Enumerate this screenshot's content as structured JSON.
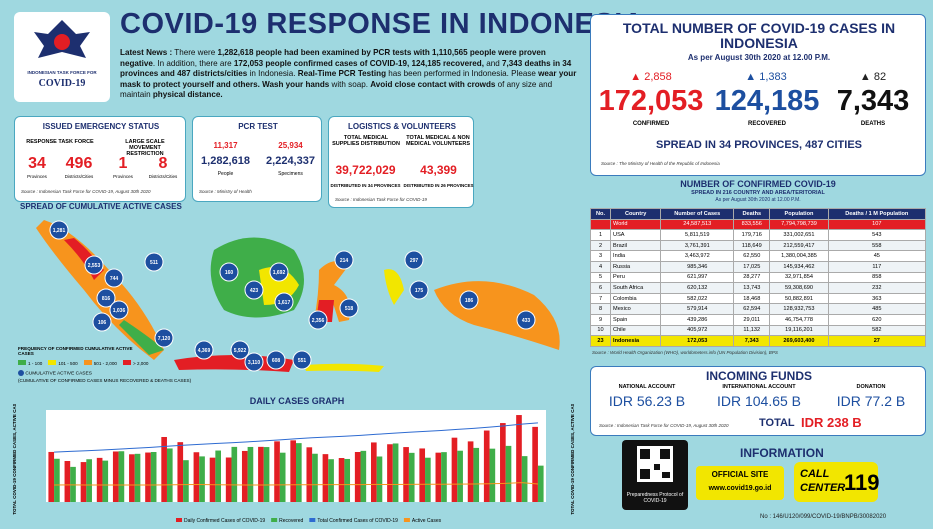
{
  "header": {
    "title": "COVID-19 RESPONSE IN INDONESIA",
    "logo_top": "INDONESIAN TASK FORCE FOR",
    "logo_bottom": "COVID-19"
  },
  "news": [
    {
      "text": "Latest News :",
      "bold": true
    },
    {
      "text": " There were ",
      "bold": false
    },
    {
      "text": "1,282,618 people had been examined by PCR tests with 1,110,565 people were proven negative",
      "bold": true
    },
    {
      "text": ". In addition, there are ",
      "bold": false
    },
    {
      "text": "172,053 people confirmed cases of COVID-19, 124,185 recovered,",
      "bold": true
    },
    {
      "text": " and ",
      "bold": false
    },
    {
      "text": "7,343 deaths in 34 provinces and 487 districts/cities",
      "bold": true
    },
    {
      "text": " in Indonesia. ",
      "bold": false
    },
    {
      "text": "Real-Time PCR Testing",
      "bold": true
    },
    {
      "text": " has been performed in Indonesia. Please ",
      "bold": false
    },
    {
      "text": "wear your mask to protect yourself and others. Wash your hands",
      "bold": true
    },
    {
      "text": " with soap. ",
      "bold": false
    },
    {
      "text": "Avoid close contact with crowds",
      "bold": true
    },
    {
      "text": " of any size and maintain ",
      "bold": false
    },
    {
      "text": "physical distance.",
      "bold": true
    }
  ],
  "emergency": {
    "title": "ISSUED EMERGENCY STATUS",
    "group1": "RESPONSE TASK FORCE",
    "group2": "LARGE SCALE MOVEMENT RESTRICTION",
    "v1": "34",
    "l1": "Provinces",
    "v2": "496",
    "l2": "Districts/Cities",
    "v3": "1",
    "l3": "Provinces",
    "v4": "8",
    "l4": "Districts/Cities",
    "source": "Source : Indonesian Task Force for COVID-19, August 30th 2020"
  },
  "pcr": {
    "title": "PCR TEST",
    "inc1": "11,317",
    "v1": "1,282,618",
    "l1": "People",
    "inc2": "25,934",
    "v2": "2,224,337",
    "l2": "Specimens",
    "source": "Source : Ministry of Health"
  },
  "logistics": {
    "title": "LOGISTICS & VOLUNTEERS",
    "h1": "TOTAL MEDICAL SUPPLIES DISTRIBUTION",
    "v1": "39,722,029",
    "d1": "DISTRIBUTED IN 34 PROVINCES",
    "h2": "TOTAL MEDICAL & NON MEDICAL VOLUNTEERS",
    "v2": "43,399",
    "d2": "DISTRIBUTED IN 26 PROVINCES",
    "source": "Source : Indonesian Task Force for COVID-19"
  },
  "map": {
    "title": "SPREAD OF CUMULATIVE ACTIVE CASES",
    "labels": [
      "1,281",
      "2,553",
      "744",
      "816",
      "511",
      "1,036",
      "106",
      "7,120",
      "4,369",
      "5,922",
      "3,110",
      "608",
      "551",
      "160",
      "423",
      "1,692",
      "1,617",
      "2,356",
      "518",
      "214",
      "175",
      "297",
      "433",
      "186"
    ],
    "legend_title": "FREQUENCY OF CONFIRMED CUMULATIVE ACTIVE CASES",
    "legend": [
      {
        "label": "1 - 100",
        "color": "#3fae49"
      },
      {
        "label": "101 - 500",
        "color": "#f2e600"
      },
      {
        "label": "501 - 2,000",
        "color": "#f7941d"
      },
      {
        "label": "> 2,000",
        "color": "#e31e24"
      }
    ],
    "badge_title": "CUMULATIVE ACTIVE CASES",
    "badge_note": "(CUMULATIVE OF CONFIRMED CASES MINUS RECOVERED & DEATHS CASES)"
  },
  "daily": {
    "title": "DAILY CASES GRAPH",
    "ylabel": "TOTAL COVID-19 CONFIRMED CASES, ACTIVE CASES",
    "y2label": "TOTAL COVID-19 CONFIRMED CASES, ACTIVE CASES",
    "ylim": [
      0,
      3500
    ],
    "y2lim": [
      0,
      200000
    ],
    "categories": [
      null,
      null,
      null,
      null,
      null,
      null,
      null,
      null,
      null,
      null,
      null,
      null,
      null,
      null,
      null,
      null,
      null,
      null,
      null,
      null,
      null,
      null,
      null,
      null,
      null,
      null,
      null,
      null,
      null,
      null,
      null
    ],
    "series": [
      {
        "name": "Daily Confirmed Cases of COVID-19",
        "color": "#e31e24",
        "values": [
          1904,
          1560,
          1519,
          1679,
          1922,
          1815,
          1882,
          2473,
          2277,
          1893,
          1687,
          1693,
          1942,
          2098,
          2307,
          2345,
          2081,
          1821,
          1673,
          1902,
          2266,
          2197,
          2090,
          2037,
          1877,
          2447,
          2306,
          2719,
          3003,
          3308,
          2858
        ]
      },
      {
        "name": "Recovered",
        "color": "#3fae49",
        "values": [
          1645,
          1336,
          1627,
          1574,
          1931,
          1833,
          1902,
          2037,
          1591,
          1735,
          1958,
          2097,
          2094,
          2090,
          1876,
          2240,
          1836,
          1628,
          1637,
          1946,
          1731,
          2227,
          1870,
          1685,
          1897,
          1951,
          2058,
          2029,
          2135,
          1745,
          1383
        ]
      },
      {
        "name": "Total Confirmed Cases of COVID-19",
        "color": "#2e6bd1",
        "axis": "y2",
        "values": [
          108376,
          109936,
          111455,
          113134,
          115056,
          116871,
          118753,
          121226,
          123503,
          125396,
          127083,
          128776,
          130718,
          132816,
          135123,
          137468,
          139549,
          141370,
          143043,
          144945,
          147211,
          149408,
          151498,
          153535,
          155412,
          157859,
          160165,
          162884,
          165887,
          169195,
          172053
        ]
      },
      {
        "name": "Active Cases",
        "color": "#f7941d",
        "axis": "y2",
        "values": [
          37000,
          37100,
          37000,
          37060,
          37000,
          36940,
          36870,
          37250,
          37850,
          37950,
          37630,
          37180,
          36980,
          36950,
          37330,
          37390,
          37600,
          37780,
          37780,
          37700,
          38200,
          38120,
          38300,
          38600,
          38500,
          38950,
          39150,
          39800,
          40600,
          42070,
          39200
        ]
      }
    ]
  },
  "total": {
    "title": "TOTAL NUMBER OF COVID-19 CASES IN INDONESIA",
    "subtitle": "As per August 30th 2020 at 12.00 P.M.",
    "confirmed_inc": "2,858",
    "confirmed": "172,053",
    "confirmed_label": "CONFIRMED",
    "recovered_inc": "1,383",
    "recovered": "124,185",
    "recovered_label": "RECOVERED",
    "deaths_inc": "82",
    "deaths": "7,343",
    "deaths_label": "DEATHS",
    "spread": "SPREAD IN 34 PROVINCES, 487 CITIES",
    "source": "Source : The Ministry of Health of the Republic of Indonesia"
  },
  "table": {
    "title": "NUMBER OF CONFIRMED COVID-19",
    "subtitle1": "SPREAD IN 216 COUNTRY AND AREA/TERITORIAL",
    "subtitle2": "As per August 30th 2020 at 12.00 P.M.",
    "header": [
      "No.",
      "Country",
      "Number of Cases",
      "Deaths",
      "Population",
      "Deaths / 1 M Population"
    ],
    "rows": [
      [
        null,
        "World",
        "24,587,513",
        "833,556",
        "7,794,798,739",
        "107"
      ],
      [
        "1",
        "USA",
        "5,811,519",
        "179,716",
        "331,002,651",
        "543"
      ],
      [
        "2",
        "Brazil",
        "3,761,391",
        "118,649",
        "212,559,417",
        "558"
      ],
      [
        "3",
        "India",
        "3,463,972",
        "62,550",
        "1,380,004,385",
        "45"
      ],
      [
        "4",
        "Russia",
        "985,346",
        "17,025",
        "145,934,462",
        "117"
      ],
      [
        "5",
        "Peru",
        "621,997",
        "28,277",
        "32,971,854",
        "858"
      ],
      [
        "6",
        "South Africa",
        "620,132",
        "13,743",
        "59,308,690",
        "232"
      ],
      [
        "7",
        "Colombia",
        "582,022",
        "18,468",
        "50,882,891",
        "363"
      ],
      [
        "8",
        "Mexico",
        "579,914",
        "62,594",
        "128,932,753",
        "485"
      ],
      [
        "9",
        "Spain",
        "439,286",
        "29,011",
        "46,754,778",
        "620"
      ],
      [
        "10",
        "Chile",
        "405,972",
        "11,132",
        "19,116,201",
        "582"
      ],
      [
        "23",
        "Indonesia",
        "172,053",
        "7,343",
        "269,603,400",
        "27"
      ]
    ],
    "source": "Source : World Health Organization (WHO), worldometers.info (UN Population Division), BPS"
  },
  "funds": {
    "title": "INCOMING FUNDS",
    "l1": "NATIONAL ACCOUNT",
    "v1": "IDR 56.23 B",
    "l2": "INTERNATIONAL ACCOUNT",
    "v2": "IDR 104.65 B",
    "l3": "DONATION",
    "v3": "IDR 77.2 B",
    "total_label": "TOTAL",
    "total": "IDR 238 B",
    "source": "Source : Indonesian Task Force for COVID-19, August 30th 2020"
  },
  "info": {
    "title": "INFORMATION",
    "qr_caption": "Preparedness Protocol of COVID-19",
    "site_label": "OFFICIAL SITE",
    "site": "www.covid19.go.id",
    "call1": "CALL",
    "call2": "CENTER",
    "call_number": "119"
  },
  "footer": "No : 146/U120/099/COVID-19/BNPB/30082020"
}
